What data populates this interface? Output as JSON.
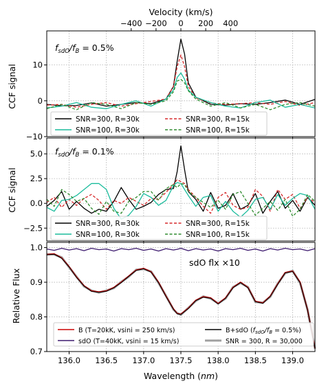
{
  "figure": {
    "top_axis_label": "Velocity (km/s)",
    "top_ticks": [
      "−400",
      "−200",
      "0",
      "200",
      "400"
    ],
    "top_tick_values": [
      -400,
      -200,
      0,
      200,
      400
    ],
    "bottom_axis_label": "Wavelength (",
    "bottom_axis_unit": "nm",
    "bottom_axis_close": ")"
  },
  "chart_data": [
    {
      "type": "line",
      "panel": "top",
      "annotation": {
        "prefix": "f",
        "sub1": "sdO",
        "slash": "/f",
        "sub2": "B",
        "suffix": " = 0.5%"
      },
      "ylabel": "CCF signal",
      "ylim": [
        -10,
        19.5
      ],
      "yticks": [
        10,
        0,
        -10
      ],
      "ytick_labels": [
        "10",
        "0",
        "−10"
      ],
      "xlim": [
        135.7,
        139.3
      ],
      "grid": true,
      "legend_position": "bottom",
      "x": [
        135.7,
        135.9,
        136.1,
        136.3,
        136.5,
        136.7,
        136.9,
        137.1,
        137.3,
        137.4,
        137.45,
        137.5,
        137.55,
        137.6,
        137.7,
        137.9,
        138.1,
        138.3,
        138.5,
        138.7,
        138.9,
        139.1,
        139.3
      ],
      "series": [
        {
          "name": "SNR=300, R=30k",
          "color": "#000000",
          "dash": "solid",
          "values": [
            -1.0,
            -1.4,
            -1.3,
            -0.6,
            -1.5,
            -1.0,
            -0.5,
            -0.8,
            0.5,
            4.0,
            11.0,
            17.2,
            13.0,
            5.0,
            1.0,
            -1.0,
            -1.2,
            -0.8,
            -1.0,
            -0.5,
            0.2,
            -1.0,
            0.4
          ]
        },
        {
          "name": "SNR=300, R=15k",
          "color": "#d62728",
          "dash": "dashed",
          "values": [
            -1.2,
            -1.0,
            -1.8,
            -1.0,
            -0.5,
            -1.5,
            -0.8,
            -0.2,
            0.5,
            4.0,
            9.5,
            12.8,
            9.5,
            4.0,
            0.8,
            -0.6,
            -1.0,
            -0.8,
            -0.5,
            -1.0,
            -0.2,
            -1.3,
            -0.5
          ]
        },
        {
          "name": "SNR=100, R=30k",
          "color": "#1abc9c",
          "dash": "solid",
          "values": [
            -2.0,
            -1.5,
            -0.5,
            -1.8,
            -2.2,
            -1.0,
            0.0,
            -1.5,
            0.5,
            3.0,
            6.5,
            7.8,
            6.0,
            3.0,
            1.0,
            -0.5,
            -1.5,
            -2.0,
            -0.5,
            0.2,
            -1.8,
            -1.0,
            -2.0
          ]
        },
        {
          "name": "SNR=100, R=15k",
          "color": "#2e8b2e",
          "dash": "dashed",
          "values": [
            -2.2,
            -1.0,
            -2.5,
            -0.5,
            -1.0,
            -2.2,
            -0.5,
            -1.0,
            0.0,
            2.5,
            5.5,
            6.0,
            5.0,
            2.8,
            0.5,
            -1.5,
            -0.5,
            -2.0,
            -1.0,
            -2.5,
            -1.0,
            -0.5,
            -1.5
          ]
        }
      ]
    },
    {
      "type": "line",
      "panel": "middle",
      "annotation": {
        "prefix": "f",
        "sub1": "sdO",
        "slash": "/f",
        "sub2": "B",
        "suffix": " = 0.1%"
      },
      "ylabel": "CCF signal",
      "ylim": [
        -3.8,
        6.6
      ],
      "yticks": [
        5.0,
        2.5,
        0.0,
        -2.5
      ],
      "ytick_labels": [
        "5.0",
        "2.5",
        "0.0",
        "−2.5"
      ],
      "xlim": [
        135.7,
        139.3
      ],
      "grid": true,
      "legend_position": "bottom",
      "x": [
        135.7,
        135.8,
        135.9,
        136.0,
        136.1,
        136.2,
        136.3,
        136.4,
        136.5,
        136.6,
        136.7,
        136.8,
        136.9,
        137.0,
        137.1,
        137.2,
        137.3,
        137.4,
        137.45,
        137.5,
        137.55,
        137.6,
        137.7,
        137.8,
        137.9,
        138.0,
        138.1,
        138.2,
        138.3,
        138.4,
        138.5,
        138.6,
        138.7,
        138.8,
        138.9,
        139.0,
        139.1,
        139.2,
        139.3
      ],
      "series": [
        {
          "name": "SNR=300, R=30k",
          "color": "#000000",
          "dash": "solid",
          "values": [
            -0.3,
            0.3,
            1.2,
            -0.6,
            0.2,
            -0.5,
            -1.0,
            -0.6,
            -0.8,
            0.2,
            1.6,
            0.4,
            -0.6,
            -0.3,
            0.1,
            0.9,
            1.4,
            1.5,
            3.2,
            5.8,
            3.4,
            1.2,
            0.4,
            -0.8,
            1.1,
            -0.5,
            -0.2,
            1.0,
            -0.6,
            -0.2,
            1.0,
            -1.0,
            0.2,
            1.2,
            -0.5,
            0.3,
            -0.8,
            0.6,
            -0.2
          ]
        },
        {
          "name": "SNR=300, R=15k",
          "color": "#d62728",
          "dash": "dashed",
          "values": [
            0.1,
            0.6,
            -0.4,
            0.4,
            -0.2,
            0.5,
            0.9,
            0.3,
            -0.6,
            0.3,
            0.0,
            0.6,
            0.2,
            -0.2,
            0.5,
            0.4,
            1.1,
            1.9,
            2.4,
            2.2,
            2.0,
            1.4,
            0.6,
            -0.3,
            -1.0,
            0.6,
            1.1,
            -0.2,
            -0.6,
            -0.4,
            1.4,
            0.7,
            -0.8,
            1.4,
            0.4,
            0.9,
            -0.5,
            0.6,
            0.1
          ]
        },
        {
          "name": "SNR=100, R=30k",
          "color": "#1abc9c",
          "dash": "solid",
          "values": [
            -0.4,
            -0.8,
            0.3,
            0.4,
            0.8,
            1.4,
            2.0,
            2.0,
            1.4,
            -0.5,
            -1.6,
            -1.2,
            -0.3,
            1.0,
            0.6,
            -0.2,
            0.3,
            1.8,
            2.1,
            2.0,
            1.4,
            0.8,
            -0.3,
            0.6,
            0.8,
            -0.8,
            0.2,
            -0.8,
            -1.4,
            -0.7,
            0.4,
            0.6,
            -0.6,
            0.9,
            -0.2,
            0.5,
            1.0,
            0.8,
            -0.6
          ]
        },
        {
          "name": "SNR=100, R=15k",
          "color": "#2e8b2e",
          "dash": "dashed",
          "values": [
            0.4,
            -0.3,
            1.4,
            0.9,
            0.2,
            0.5,
            -0.5,
            -1.1,
            0.2,
            -0.8,
            -1.0,
            0.2,
            0.6,
            1.2,
            1.2,
            0.3,
            1.5,
            1.9,
            1.6,
            2.0,
            1.9,
            1.2,
            0.6,
            0.1,
            -0.4,
            0.3,
            -0.6,
            0.9,
            1.2,
            0.0,
            -1.2,
            -0.5,
            0.2,
            -0.7,
            0.4,
            -1.3,
            -0.6,
            0.9,
            0.2
          ]
        }
      ]
    },
    {
      "type": "line",
      "panel": "bottom",
      "note": "sdO flx ×10",
      "ylabel": "Relative Flux",
      "xlabel": "Wavelength (nm)",
      "ylim": [
        0.7,
        1.015
      ],
      "yticks": [
        1.0,
        0.9,
        0.8,
        0.7
      ],
      "ytick_labels": [
        "1.0",
        "0.9",
        "0.8",
        "0.7"
      ],
      "xlim": [
        135.7,
        139.3
      ],
      "xticks": [
        136.0,
        136.5,
        137.0,
        137.5,
        138.0,
        138.5,
        139.0
      ],
      "xtick_labels": [
        "136.0",
        "136.5",
        "137.0",
        "137.5",
        "138.0",
        "138.5",
        "139.0"
      ],
      "grid": true,
      "legend_position": "bottom",
      "x": [
        135.7,
        135.8,
        135.9,
        136.0,
        136.1,
        136.2,
        136.3,
        136.4,
        136.5,
        136.6,
        136.7,
        136.8,
        136.9,
        137.0,
        137.1,
        137.2,
        137.3,
        137.4,
        137.45,
        137.5,
        137.6,
        137.7,
        137.8,
        137.9,
        138.0,
        138.1,
        138.2,
        138.3,
        138.4,
        138.5,
        138.6,
        138.7,
        138.8,
        138.9,
        139.0,
        139.1,
        139.2,
        139.3
      ],
      "series": [
        {
          "name": "B (T=20kK, vsini = 250 km/s)",
          "color": "#cc0000",
          "dash": "solid",
          "values": [
            0.98,
            0.982,
            0.97,
            0.945,
            0.915,
            0.89,
            0.875,
            0.872,
            0.875,
            0.885,
            0.9,
            0.918,
            0.935,
            0.94,
            0.93,
            0.9,
            0.86,
            0.823,
            0.81,
            0.808,
            0.825,
            0.848,
            0.858,
            0.855,
            0.838,
            0.855,
            0.885,
            0.9,
            0.885,
            0.845,
            0.84,
            0.86,
            0.895,
            0.928,
            0.932,
            0.9,
            0.82,
            0.71
          ]
        },
        {
          "name": "sdO (T=40kK, vsini = 15 km/s)",
          "color": "#3d1a6e",
          "dash": "solid",
          "values": [
            0.996,
            0.992,
            0.998,
            0.993,
            0.997,
            0.991,
            0.998,
            0.994,
            0.996,
            0.99,
            0.997,
            0.994,
            0.998,
            0.992,
            0.996,
            0.99,
            0.997,
            0.993,
            0.995,
            0.998,
            0.991,
            0.997,
            0.993,
            0.996,
            0.99,
            0.997,
            0.994,
            0.998,
            0.992,
            0.996,
            0.99,
            0.997,
            0.993,
            0.998,
            0.994,
            0.996,
            0.991,
            0.997
          ]
        },
        {
          "name": "B+sdO (fsdO/fB = 0.5%)",
          "color": "#000000",
          "dash": "solid",
          "values": [
            0.979,
            0.981,
            0.969,
            0.944,
            0.914,
            0.889,
            0.874,
            0.871,
            0.874,
            0.884,
            0.899,
            0.917,
            0.934,
            0.939,
            0.929,
            0.899,
            0.859,
            0.822,
            0.809,
            0.807,
            0.824,
            0.847,
            0.857,
            0.854,
            0.837,
            0.854,
            0.884,
            0.899,
            0.884,
            0.844,
            0.839,
            0.859,
            0.894,
            0.927,
            0.931,
            0.899,
            0.819,
            0.709
          ]
        },
        {
          "name": "SNR = 300, R = 30,000",
          "color": "#777777",
          "dash": "solid",
          "values": [
            0.981,
            0.98,
            0.972,
            0.943,
            0.916,
            0.888,
            0.876,
            0.87,
            0.876,
            0.883,
            0.901,
            0.916,
            0.936,
            0.938,
            0.931,
            0.898,
            0.861,
            0.821,
            0.811,
            0.806,
            0.826,
            0.846,
            0.859,
            0.853,
            0.839,
            0.853,
            0.886,
            0.898,
            0.886,
            0.843,
            0.841,
            0.858,
            0.896,
            0.926,
            0.933,
            0.898,
            0.821,
            0.708
          ]
        }
      ]
    }
  ],
  "legends": {
    "top": [
      {
        "label": "SNR=300, R=30k",
        "color": "#000000",
        "dash": "solid"
      },
      {
        "label": "SNR=300, R=15k",
        "color": "#d62728",
        "dash": "dashed"
      },
      {
        "label": "SNR=100, R=30k",
        "color": "#1abc9c",
        "dash": "solid"
      },
      {
        "label": "SNR=100, R=15k",
        "color": "#2e8b2e",
        "dash": "dashed"
      }
    ],
    "middle": [
      {
        "label": "SNR=300, R=30k",
        "color": "#000000",
        "dash": "solid"
      },
      {
        "label": "SNR=300, R=15k",
        "color": "#d62728",
        "dash": "dashed"
      },
      {
        "label": "SNR=100, R=30k",
        "color": "#1abc9c",
        "dash": "solid"
      },
      {
        "label": "SNR=100, R=15k",
        "color": "#2e8b2e",
        "dash": "dashed"
      }
    ],
    "bottom": [
      {
        "label": "B (T=20kK, vsini = 250 km/s)",
        "color": "#cc0000",
        "dash": "solid"
      },
      {
        "label": "B+sdO (",
        "label_after": " = 0.5%)",
        "color": "#000000",
        "dash": "solid"
      },
      {
        "label": "sdO (T=40kK, vsini = 15 km/s)",
        "color": "#3d1a6e",
        "dash": "solid"
      },
      {
        "label": "SNR = 300, R = 30,000",
        "color": "#777777",
        "dash": "solid",
        "thick": true
      }
    ]
  }
}
